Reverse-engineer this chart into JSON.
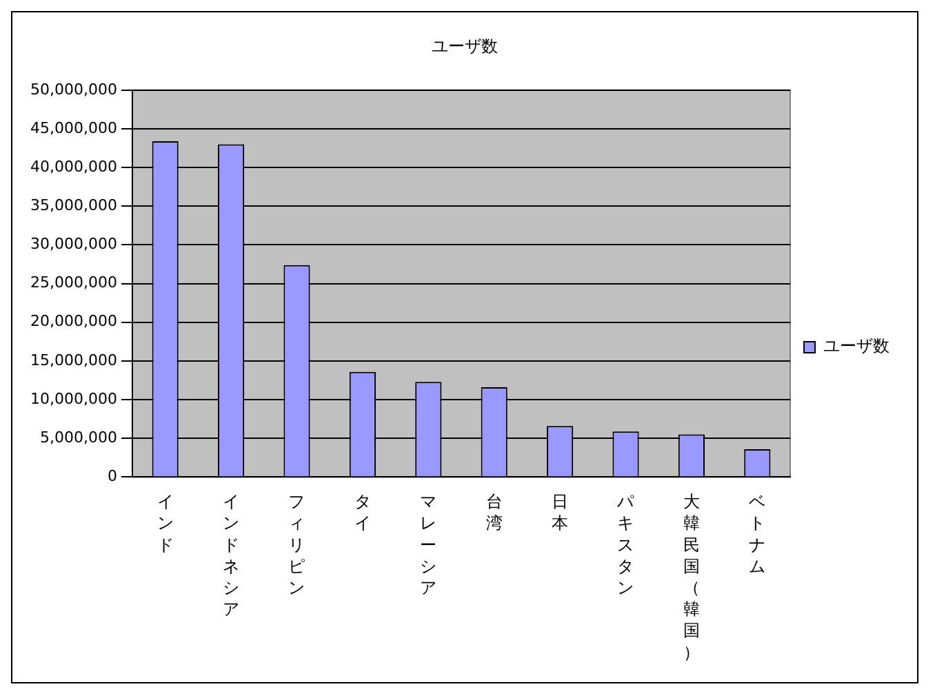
{
  "chart_data": {
    "type": "bar",
    "title": "ユーザ数",
    "categories": [
      "インド",
      "インドネシア",
      "フィリピン",
      "タイ",
      "マレーシア",
      "台湾",
      "日本",
      "パキスタン",
      "大韓民国（韓国）",
      "ベトナム"
    ],
    "series": [
      {
        "name": "ユーザ数",
        "color": "#9999ff",
        "values": [
          43400000,
          43000000,
          27400000,
          13600000,
          12300000,
          11600000,
          6600000,
          5900000,
          5500000,
          3600000
        ]
      }
    ],
    "ylim": [
      0,
      50000000
    ],
    "yticks": [
      0,
      {
        "value": 5000000,
        "label": "5,000,000"
      },
      {
        "value": 10000000,
        "label": "10,000,000"
      },
      {
        "value": 15000000,
        "label": "15,000,000"
      },
      {
        "value": 20000000,
        "label": "20,000,000"
      },
      {
        "value": 25000000,
        "label": "25,000,000"
      },
      {
        "value": 30000000,
        "label": "30,000,000"
      },
      {
        "value": 35000000,
        "label": "35,000,000"
      },
      {
        "value": 40000000,
        "label": "40,000,000"
      },
      {
        "value": 45000000,
        "label": "45,000,000"
      },
      {
        "value": 50000000,
        "label": "50,000,000"
      }
    ],
    "grid": "y",
    "legend": "right"
  }
}
